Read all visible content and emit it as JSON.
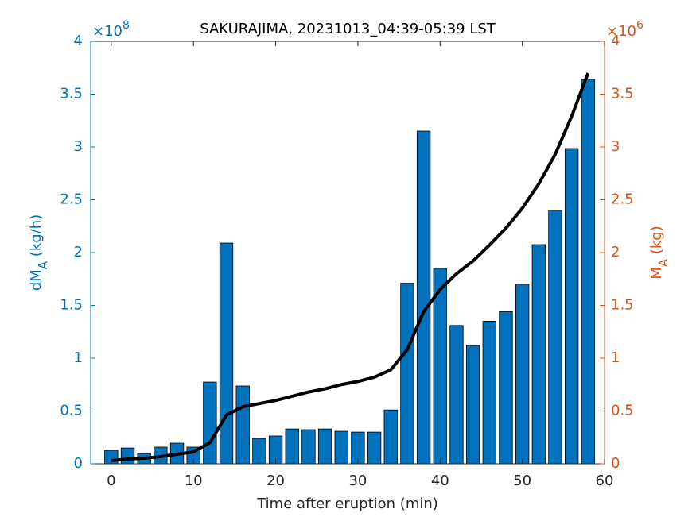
{
  "chart_data": {
    "type": "bar",
    "title": "SAKURAJIMA, 20231013_04:39-05:39 LST",
    "xlabel": "Time after eruption (min)",
    "ylabel": {
      "main": "dM",
      "sub": "A",
      "unit": " (kg/h)"
    },
    "y2label": {
      "main": "M",
      "sub": "A",
      "unit": " (kg)"
    },
    "y_multiplier": {
      "base": "×10",
      "exponent": "8"
    },
    "y2_multiplier": {
      "base": "×10",
      "exponent": "6"
    },
    "x": [
      0,
      2,
      4,
      6,
      8,
      10,
      12,
      14,
      16,
      18,
      20,
      22,
      24,
      26,
      28,
      30,
      32,
      34,
      36,
      38,
      40,
      42,
      44,
      46,
      48,
      50,
      52,
      54,
      56,
      58
    ],
    "xlim": [
      -2.5,
      60
    ],
    "xticks": [
      0,
      10,
      20,
      30,
      40,
      50,
      60
    ],
    "ylim": [
      0,
      4
    ],
    "yticks": [
      0,
      0.5,
      1,
      1.5,
      2,
      2.5,
      3,
      3.5,
      4
    ],
    "y2lim": [
      0,
      4
    ],
    "y2ticks": [
      0,
      0.5,
      1,
      1.5,
      2,
      2.5,
      3,
      3.5,
      4
    ],
    "y_color": "#0072BD",
    "y2_color": "#D95319",
    "series": [
      {
        "type": "bar",
        "color": "#0072BD",
        "values": [
          0.128,
          0.15,
          0.098,
          0.158,
          0.195,
          0.158,
          0.774,
          2.09,
          0.737,
          0.24,
          0.263,
          0.33,
          0.323,
          0.33,
          0.308,
          0.3,
          0.3,
          0.51,
          1.71,
          3.15,
          1.85,
          1.31,
          1.12,
          1.35,
          1.44,
          1.7,
          2.075,
          2.4,
          2.985,
          3.64
        ]
      },
      {
        "type": "line",
        "axis": "y2",
        "color": "#000000",
        "values": [
          0.03,
          0.045,
          0.053,
          0.068,
          0.09,
          0.113,
          0.2,
          0.46,
          0.54,
          0.57,
          0.6,
          0.64,
          0.68,
          0.71,
          0.75,
          0.78,
          0.82,
          0.89,
          1.08,
          1.44,
          1.65,
          1.8,
          1.92,
          2.07,
          2.23,
          2.42,
          2.65,
          2.93,
          3.29,
          3.7
        ]
      }
    ]
  }
}
